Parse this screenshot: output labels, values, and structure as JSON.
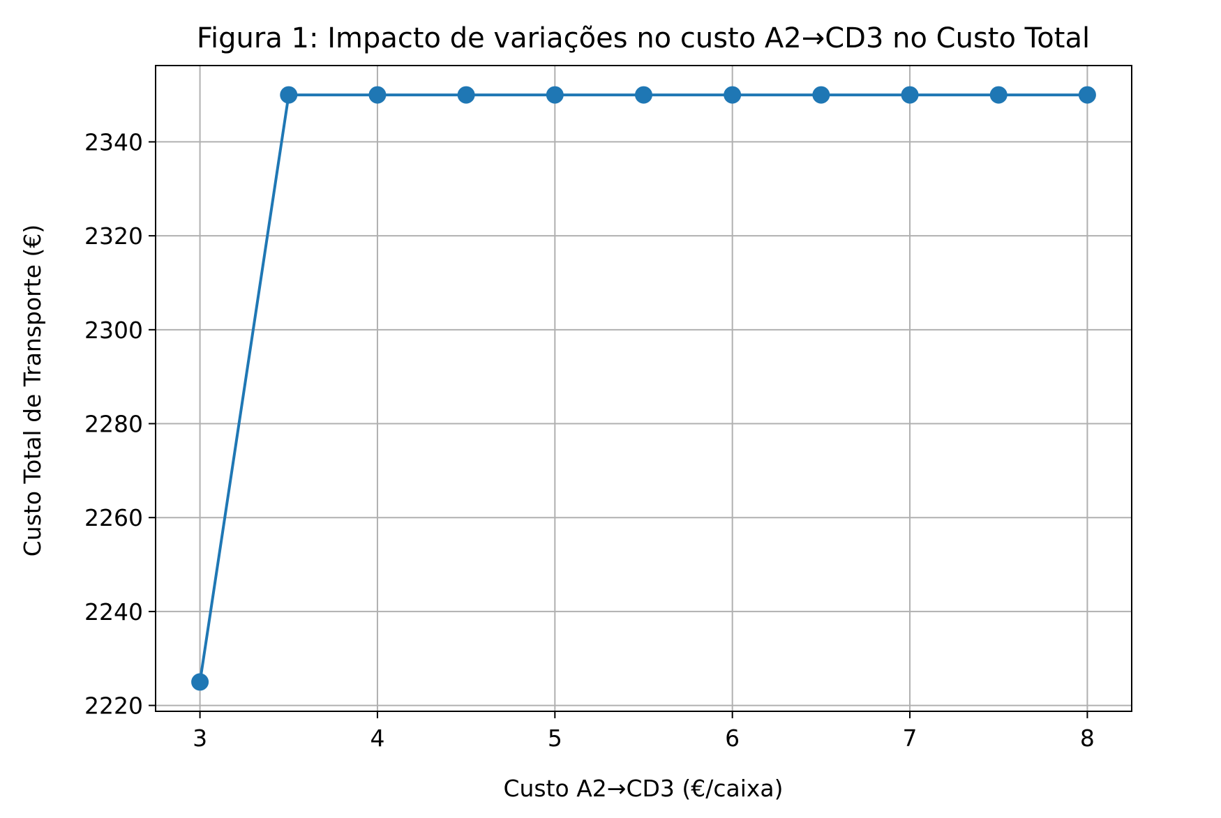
{
  "chart_data": {
    "type": "line",
    "title": "Figura 1: Impacto de variações no custo A2→CD3 no Custo Total",
    "xlabel": "Custo A2→CD3 (€/caixa)",
    "ylabel": "Custo Total de Transporte (€)",
    "x": [
      3,
      3.5,
      4,
      4.5,
      5,
      5.5,
      6,
      6.5,
      7,
      7.5,
      8
    ],
    "series": [
      {
        "values": [
          2225,
          2350,
          2350,
          2350,
          2350,
          2350,
          2350,
          2350,
          2350,
          2350,
          2350
        ]
      }
    ],
    "xlim": [
      2.75,
      8.25
    ],
    "ylim": [
      2218.75,
      2356.25
    ],
    "xticks": [
      3,
      4,
      5,
      6,
      7,
      8
    ],
    "yticks": [
      2220,
      2240,
      2260,
      2280,
      2300,
      2320,
      2340
    ],
    "grid": true,
    "legend": "none",
    "line_color": "#1f77b4",
    "marker": "circle",
    "grid_color": "#b0b0b0"
  }
}
